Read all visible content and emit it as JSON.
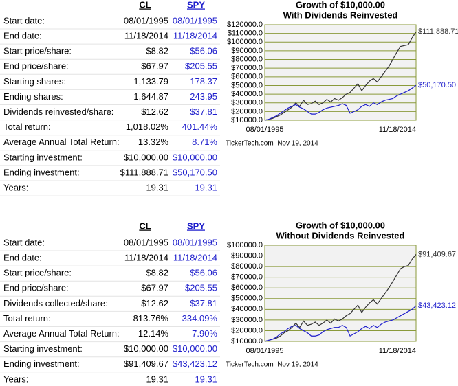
{
  "sections": [
    {
      "table": {
        "headers": [
          "CL",
          "SPY"
        ],
        "rows": [
          [
            "Start date:",
            "08/01/1995",
            "08/01/1995"
          ],
          [
            "End date:",
            "11/18/2014",
            "11/18/2014"
          ],
          [
            "Start price/share:",
            "$8.82",
            "$56.06"
          ],
          [
            "End price/share:",
            "$67.97",
            "$205.55"
          ],
          [
            "Starting shares:",
            "1,133.79",
            "178.37"
          ],
          [
            "Ending shares:",
            "1,644.87",
            "243.95"
          ],
          [
            "Dividends reinvested/share:",
            "$12.62",
            "$37.81"
          ],
          [
            "Total return:",
            "1,018.02%",
            "401.44%"
          ],
          [
            "Average Annual Total Return:",
            "13.32%",
            "8.71%"
          ],
          [
            "Starting investment:",
            "$10,000.00",
            "$10,000.00"
          ],
          [
            "Ending investment:",
            "$111,888.71",
            "$50,170.50"
          ],
          [
            "Years:",
            "19.31",
            "19.31"
          ]
        ]
      }
    },
    {
      "table": {
        "headers": [
          "CL",
          "SPY"
        ],
        "rows": [
          [
            "Start date:",
            "08/01/1995",
            "08/01/1995"
          ],
          [
            "End date:",
            "11/18/2014",
            "11/18/2014"
          ],
          [
            "Start price/share:",
            "$8.82",
            "$56.06"
          ],
          [
            "End price/share:",
            "$67.97",
            "$205.55"
          ],
          [
            "Dividends collected/share:",
            "$12.62",
            "$37.81"
          ],
          [
            "Total return:",
            "813.76%",
            "334.09%"
          ],
          [
            "Average Annual Total Return:",
            "12.14%",
            "7.90%"
          ],
          [
            "Starting investment:",
            "$10,000.00",
            "$10,000.00"
          ],
          [
            "Ending investment:",
            "$91,409.67",
            "$43,423.12"
          ],
          [
            "Years:",
            "19.31",
            "19.31"
          ]
        ]
      }
    }
  ],
  "chart_data": [
    {
      "type": "line",
      "title": "Growth of $10,000.00",
      "subtitle": "With Dividends Reinvested",
      "categories": [
        "08/01/1995",
        null,
        null,
        null,
        null,
        null,
        null,
        null,
        null,
        null,
        null,
        null,
        null,
        null,
        null,
        null,
        null,
        null,
        null,
        null,
        null,
        null,
        null,
        null,
        null,
        null,
        null,
        null,
        null,
        null,
        null,
        null,
        null,
        null,
        null,
        null,
        null,
        null,
        null,
        "11/18/2014"
      ],
      "series": [
        {
          "name": "CL",
          "color": "#333333",
          "end_label": "$111,888.71",
          "values": [
            10000,
            11000,
            12000,
            14000,
            16000,
            19000,
            22000,
            25000,
            30000,
            26000,
            33000,
            28000,
            29000,
            32000,
            28000,
            30000,
            34000,
            31000,
            35000,
            33000,
            36000,
            40000,
            42000,
            47000,
            52000,
            44000,
            50000,
            55000,
            58000,
            54000,
            60000,
            66000,
            72000,
            80000,
            88000,
            95000,
            96000,
            97000,
            105000,
            111888.71
          ]
        },
        {
          "name": "SPY",
          "color": "#1f1fcc",
          "end_label": "$50,170.50",
          "values": [
            10000,
            11000,
            13000,
            15000,
            18000,
            21000,
            24000,
            26000,
            28000,
            25000,
            23000,
            20000,
            17000,
            17000,
            19000,
            22000,
            24000,
            25000,
            26000,
            27000,
            29000,
            27000,
            18000,
            20000,
            22000,
            26000,
            28000,
            26000,
            30000,
            28000,
            31000,
            33000,
            34000,
            35000,
            38000,
            40000,
            42000,
            44000,
            47000,
            50170.5
          ]
        }
      ],
      "ylim": [
        10000,
        120000
      ],
      "yticks": [
        {
          "value": 10000,
          "label": "$10000.0"
        },
        {
          "value": 20000,
          "label": "$20000.0"
        },
        {
          "value": 30000,
          "label": "$30000.0"
        },
        {
          "value": 40000,
          "label": "$40000.0"
        },
        {
          "value": 50000,
          "label": "$50000.0"
        },
        {
          "value": 60000,
          "label": "$60000.0"
        },
        {
          "value": 70000,
          "label": "$70000.0"
        },
        {
          "value": 80000,
          "label": "$80000.0"
        },
        {
          "value": 90000,
          "label": "$90000.0"
        },
        {
          "value": 100000,
          "label": "$100000.0"
        },
        {
          "value": 110000,
          "label": "$110000.0"
        },
        {
          "value": 120000,
          "label": "$120000.0"
        }
      ],
      "grid": true,
      "source": "TickerTech.com  Nov 19, 2014"
    },
    {
      "type": "line",
      "title": "Growth of $10,000.00",
      "subtitle": "Without Dividends Reinvested",
      "categories": [
        "08/01/1995",
        null,
        null,
        null,
        null,
        null,
        null,
        null,
        null,
        null,
        null,
        null,
        null,
        null,
        null,
        null,
        null,
        null,
        null,
        null,
        null,
        null,
        null,
        null,
        null,
        null,
        null,
        null,
        null,
        null,
        null,
        null,
        null,
        null,
        null,
        null,
        null,
        null,
        null,
        "11/18/2014"
      ],
      "series": [
        {
          "name": "CL",
          "color": "#333333",
          "end_label": "$91,409.67",
          "values": [
            10000,
            11000,
            12000,
            13000,
            15000,
            18000,
            20000,
            23000,
            27000,
            23000,
            29000,
            25000,
            26000,
            28000,
            25000,
            27000,
            30000,
            27000,
            31000,
            29000,
            31000,
            34000,
            36000,
            40000,
            44000,
            37000,
            42000,
            46000,
            49000,
            45000,
            50000,
            55000,
            60000,
            66000,
            72000,
            78000,
            80000,
            81000,
            87000,
            91409.67
          ]
        },
        {
          "name": "SPY",
          "color": "#1f1fcc",
          "end_label": "$43,423.12",
          "values": [
            10000,
            11000,
            12000,
            14000,
            17000,
            19000,
            22000,
            24000,
            25000,
            22000,
            20000,
            18000,
            15000,
            15000,
            16000,
            19000,
            21000,
            22000,
            23000,
            23000,
            25000,
            23000,
            15000,
            17000,
            19000,
            22000,
            24000,
            22000,
            25000,
            23000,
            26000,
            28000,
            29000,
            30000,
            32000,
            34000,
            36000,
            38000,
            40000,
            43423.12
          ]
        }
      ],
      "ylim": [
        10000,
        100000
      ],
      "yticks": [
        {
          "value": 10000,
          "label": "$10000.0"
        },
        {
          "value": 20000,
          "label": "$20000.0"
        },
        {
          "value": 30000,
          "label": "$30000.0"
        },
        {
          "value": 40000,
          "label": "$40000.0"
        },
        {
          "value": 50000,
          "label": "$50000.0"
        },
        {
          "value": 60000,
          "label": "$60000.0"
        },
        {
          "value": 70000,
          "label": "$70000.0"
        },
        {
          "value": 80000,
          "label": "$80000.0"
        },
        {
          "value": 90000,
          "label": "$90000.0"
        },
        {
          "value": 100000,
          "label": "$100000.0"
        }
      ],
      "grid": true,
      "source": "TickerTech.com  Nov 19, 2014"
    }
  ]
}
